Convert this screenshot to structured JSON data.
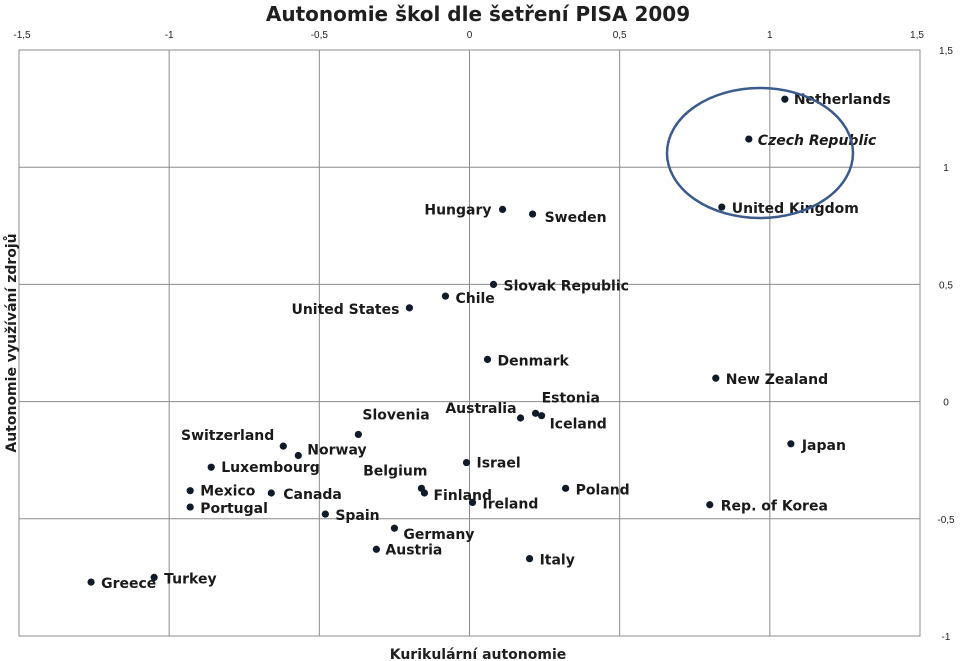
{
  "chart_data": {
    "type": "scatter",
    "title": "Autonomie škol dle šetření PISA 2009",
    "xlabel": "Kurikulární autonomie",
    "ylabel": "Autonomie využívání  zdrojů",
    "xlim": [
      -1.5,
      1.5
    ],
    "ylim": [
      -1,
      1.5
    ],
    "xticks": [
      "-1,5",
      "-1",
      "-0,5",
      "0",
      "0,5",
      "1",
      "1,5"
    ],
    "yticks": [
      "1,5",
      "1",
      "0,5",
      "0",
      "-0,5",
      "-1"
    ],
    "grid": true,
    "points": [
      {
        "label": "Netherlands",
        "x": 1.05,
        "y": 1.29
      },
      {
        "label": "Czech Republic",
        "x": 0.93,
        "y": 1.12,
        "highlighted": true
      },
      {
        "label": "United Kingdom",
        "x": 0.84,
        "y": 0.83
      },
      {
        "label": "Hungary",
        "x": 0.11,
        "y": 0.82
      },
      {
        "label": "Sweden",
        "x": 0.21,
        "y": 0.8
      },
      {
        "label": "Slovak Republic",
        "x": 0.08,
        "y": 0.5
      },
      {
        "label": "Chile",
        "x": -0.08,
        "y": 0.45
      },
      {
        "label": "United States",
        "x": -0.2,
        "y": 0.4
      },
      {
        "label": "Denmark",
        "x": 0.06,
        "y": 0.18
      },
      {
        "label": "New Zealand",
        "x": 0.82,
        "y": 0.1
      },
      {
        "label": "Estonia",
        "x": 0.22,
        "y": -0.05
      },
      {
        "label": "Australia",
        "x": 0.17,
        "y": -0.07
      },
      {
        "label": "Iceland",
        "x": 0.24,
        "y": -0.06
      },
      {
        "label": "Slovenia",
        "x": -0.37,
        "y": -0.14
      },
      {
        "label": "Switzerland",
        "x": -0.62,
        "y": -0.19
      },
      {
        "label": "Norway",
        "x": -0.57,
        "y": -0.23
      },
      {
        "label": "Japan",
        "x": 1.07,
        "y": -0.18
      },
      {
        "label": "Luxembourg",
        "x": -0.86,
        "y": -0.28
      },
      {
        "label": "Israel",
        "x": -0.01,
        "y": -0.26
      },
      {
        "label": "Belgium",
        "x": -0.16,
        "y": -0.37
      },
      {
        "label": "Finland",
        "x": -0.15,
        "y": -0.39
      },
      {
        "label": "Ireland",
        "x": 0.01,
        "y": -0.43
      },
      {
        "label": "Poland",
        "x": 0.32,
        "y": -0.37
      },
      {
        "label": "Mexico",
        "x": -0.93,
        "y": -0.38
      },
      {
        "label": "Canada",
        "x": -0.66,
        "y": -0.39
      },
      {
        "label": "Portugal",
        "x": -0.93,
        "y": -0.45
      },
      {
        "label": "Spain",
        "x": -0.48,
        "y": -0.48
      },
      {
        "label": "Rep. of Korea",
        "x": 0.8,
        "y": -0.44
      },
      {
        "label": "Germany",
        "x": -0.25,
        "y": -0.54
      },
      {
        "label": "Austria",
        "x": -0.31,
        "y": -0.63
      },
      {
        "label": "Italy",
        "x": 0.2,
        "y": -0.67
      },
      {
        "label": "Turkey",
        "x": -1.05,
        "y": -0.75
      },
      {
        "label": "Greece",
        "x": -1.26,
        "y": -0.77
      }
    ]
  }
}
